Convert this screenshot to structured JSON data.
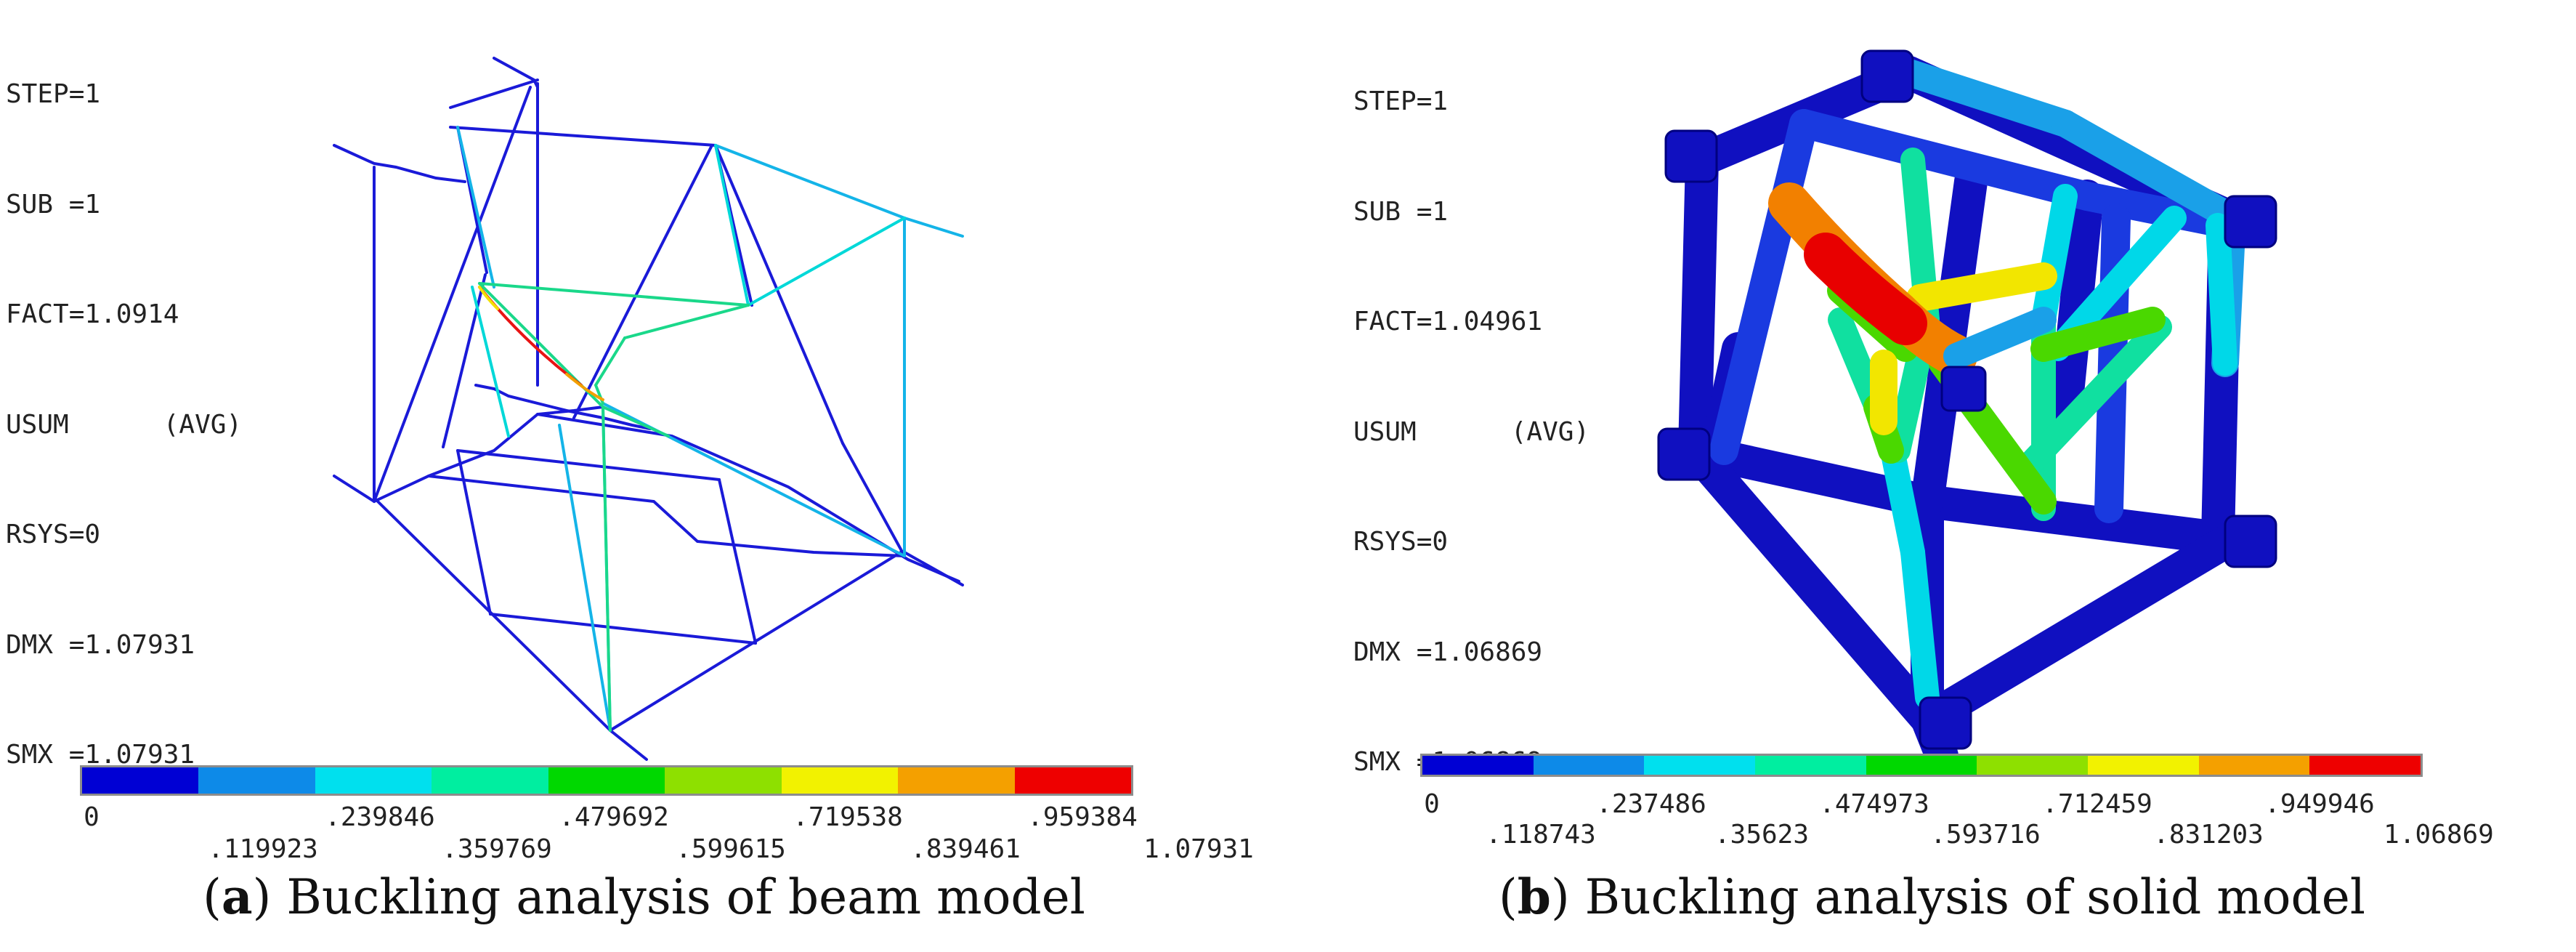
{
  "panels": [
    {
      "id": "a",
      "info_lines": [
        "STEP=1",
        "SUB =1",
        "FACT=1.0914",
        "USUM      (AVG)",
        "RSYS=0",
        "DMX =1.07931",
        "SMX =1.07931"
      ],
      "legend": {
        "colors": [
          "#0000d4",
          "#0d8ae8",
          "#00e0ee",
          "#00eea0",
          "#00d800",
          "#8ee000",
          "#f2f200",
          "#f4a000",
          "#ee0000"
        ],
        "upper_ticks": [
          "0",
          ".239846",
          ".479692",
          ".719538",
          ".959384"
        ],
        "lower_ticks": [
          ".119923",
          ".359769",
          ".599615",
          ".839461",
          "1.07931"
        ]
      },
      "caption": {
        "prefix": "(",
        "letter": "a",
        "text": ") Buckling analysis of beam model"
      }
    },
    {
      "id": "b",
      "info_lines": [
        "STEP=1",
        "SUB =1",
        "FACT=1.04961",
        "USUM      (AVG)",
        "RSYS=0",
        "DMX =1.06869",
        "SMX =1.06869"
      ],
      "legend": {
        "colors": [
          "#0000d4",
          "#0d8ae8",
          "#00e0ee",
          "#00eea0",
          "#00d800",
          "#8ee000",
          "#f2f200",
          "#f4a000",
          "#ee0000"
        ],
        "upper_ticks": [
          "0",
          ".237486",
          ".474973",
          ".712459",
          ".949946"
        ],
        "lower_ticks": [
          ".118743",
          ".35623",
          ".593716",
          ".831203",
          "1.06869"
        ]
      },
      "caption": {
        "prefix": "(",
        "letter": "b",
        "text": ") Buckling analysis of solid model"
      }
    }
  ]
}
